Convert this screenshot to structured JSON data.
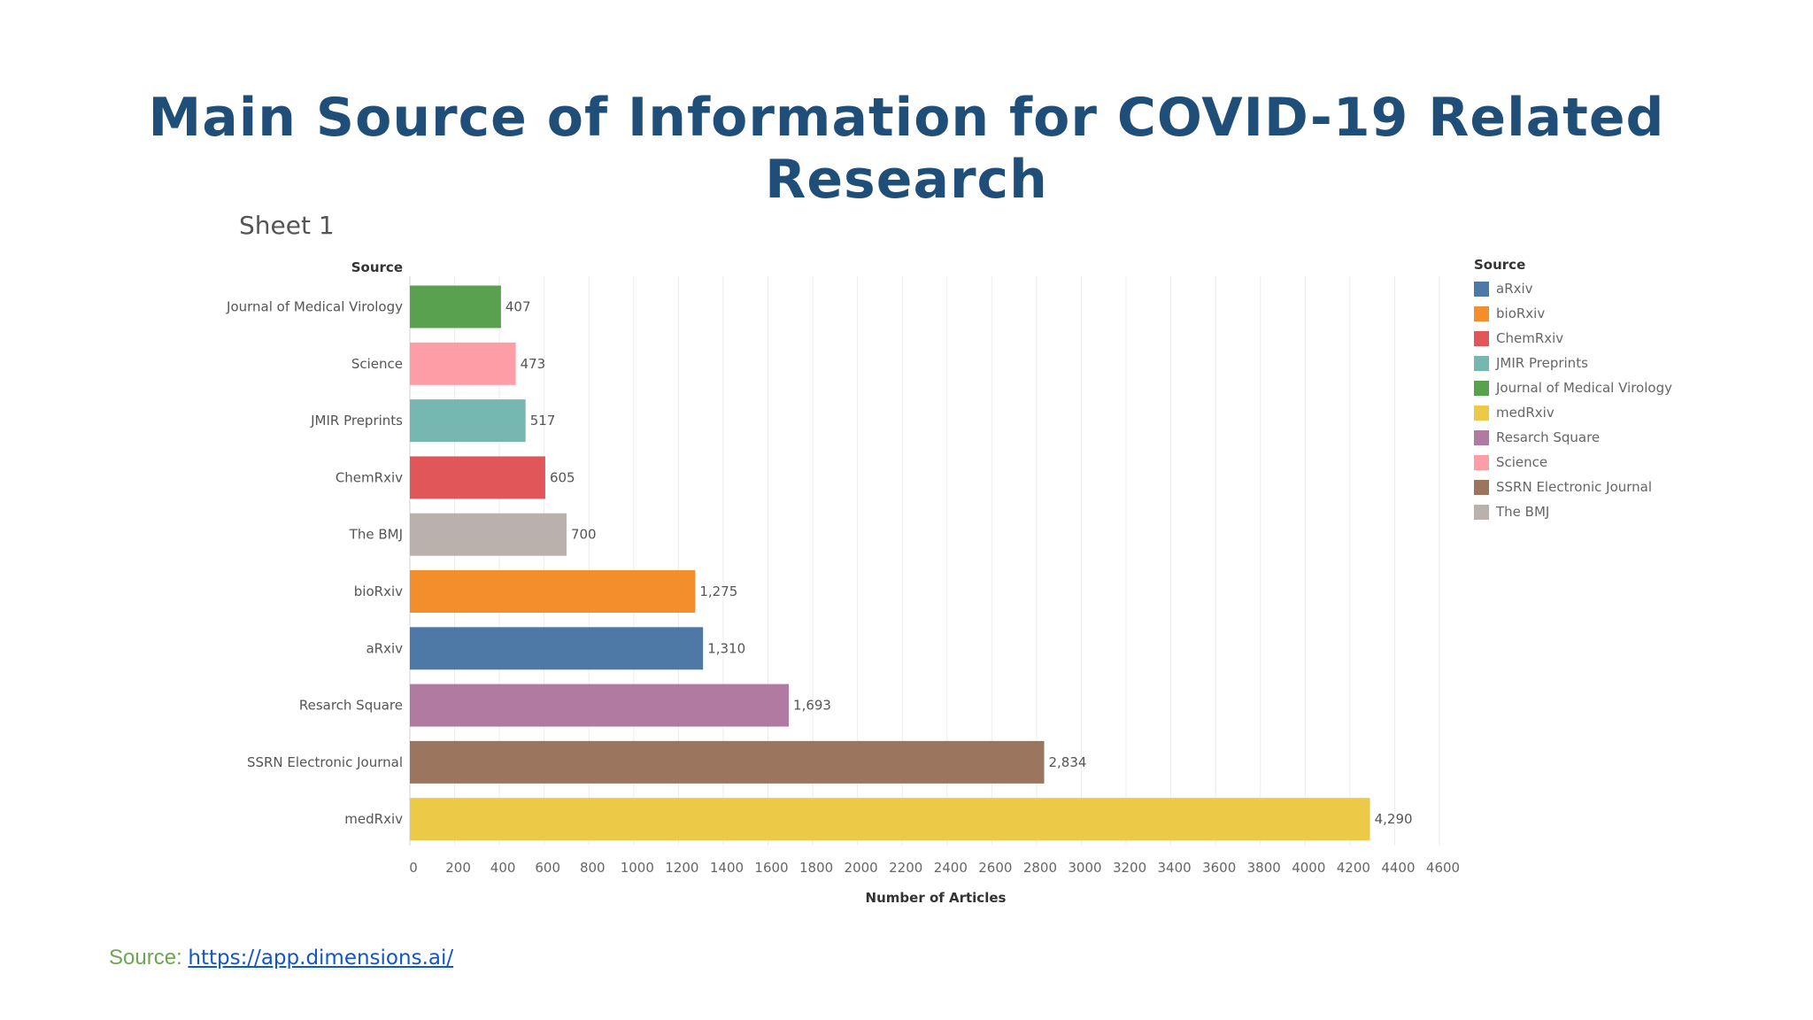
{
  "slide": {
    "title": "Main Source of Information for COVID-19 Related Research",
    "source_prefix": "Source:",
    "source_link": "https://app.dimensions.ai/"
  },
  "chart_data": {
    "type": "bar",
    "orientation": "horizontal",
    "sheet_title": "Sheet 1",
    "row_header": "Source",
    "xlabel": "Number of Articles",
    "ylabel": "Source",
    "xlim": [
      0,
      4600
    ],
    "x_ticks": [
      0,
      200,
      400,
      600,
      800,
      1000,
      1200,
      1400,
      1600,
      1800,
      2000,
      2200,
      2400,
      2600,
      2800,
      3000,
      3200,
      3400,
      3600,
      3800,
      4000,
      4200,
      4400,
      4600
    ],
    "grid": true,
    "categories": [
      "Journal of Medical Virology",
      "Science",
      "JMIR Preprints",
      "ChemRxiv",
      "The BMJ",
      "bioRxiv",
      "aRxiv",
      "Resarch Square",
      "SSRN Electronic Journal",
      "medRxiv"
    ],
    "values": [
      407,
      473,
      517,
      605,
      700,
      1275,
      1310,
      1693,
      2834,
      4290
    ],
    "value_labels": [
      "407",
      "473",
      "517",
      "605",
      "700",
      "1,275",
      "1,310",
      "1,693",
      "2,834",
      "4,290"
    ],
    "colors": [
      "#59a14f",
      "#ff9da7",
      "#76b7b2",
      "#e15759",
      "#bab0ac",
      "#f28e2b",
      "#4e79a7",
      "#b07aa1",
      "#9c755f",
      "#edc948"
    ],
    "legend": {
      "title": "Source",
      "placement": "right",
      "items": [
        {
          "label": "aRxiv",
          "color": "#4e79a7"
        },
        {
          "label": "bioRxiv",
          "color": "#f28e2b"
        },
        {
          "label": "ChemRxiv",
          "color": "#e15759"
        },
        {
          "label": "JMIR Preprints",
          "color": "#76b7b2"
        },
        {
          "label": "Journal of Medical Virology",
          "color": "#59a14f"
        },
        {
          "label": "medRxiv",
          "color": "#edc948"
        },
        {
          "label": "Resarch Square",
          "color": "#b07aa1"
        },
        {
          "label": "Science",
          "color": "#ff9da7"
        },
        {
          "label": "SSRN Electronic Journal",
          "color": "#9c755f"
        },
        {
          "label": "The BMJ",
          "color": "#bab0ac"
        }
      ]
    }
  }
}
